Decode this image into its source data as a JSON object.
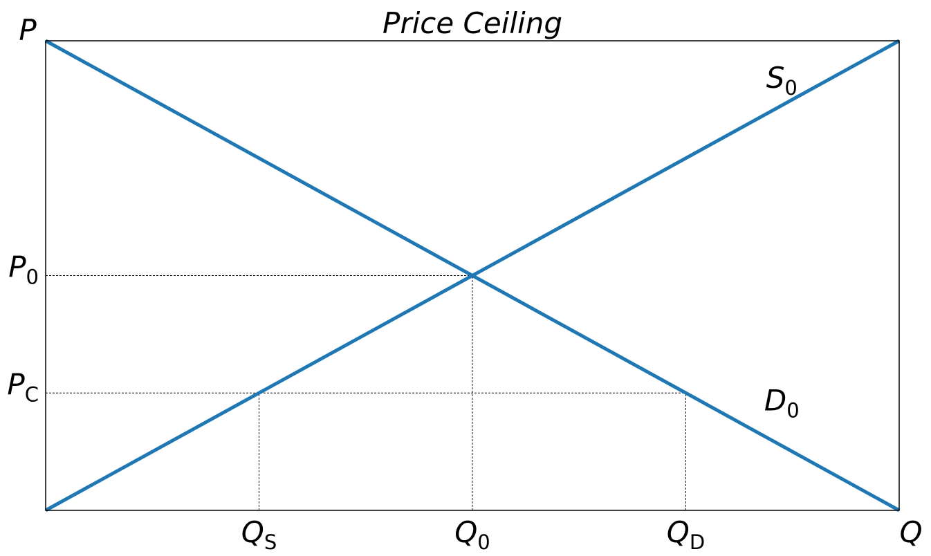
{
  "chart_data": {
    "type": "line",
    "title": "Price Ceiling",
    "xlabel": "Q",
    "ylabel": "P",
    "xlim": [
      0,
      8
    ],
    "ylim": [
      0,
      8
    ],
    "grid": false,
    "colors": {
      "curve": "#1f77b4",
      "guide": "#000000"
    },
    "series": [
      {
        "id": "supply",
        "label_base": "S",
        "label_sub": "0",
        "label_at": [
          6.9,
          7.2
        ],
        "x": [
          0,
          8
        ],
        "y": [
          0,
          8
        ]
      },
      {
        "id": "demand",
        "label_base": "D",
        "label_sub": "0",
        "label_at": [
          6.9,
          1.7
        ],
        "x": [
          0,
          8
        ],
        "y": [
          8,
          0
        ]
      }
    ],
    "y_ticks": [
      {
        "value": 4,
        "base": "P",
        "sub": "0"
      },
      {
        "value": 2,
        "base": "P",
        "sub": "C"
      }
    ],
    "x_ticks": [
      {
        "value": 2,
        "base": "Q",
        "sub": "S"
      },
      {
        "value": 4,
        "base": "Q",
        "sub": "0"
      },
      {
        "value": 6,
        "base": "Q",
        "sub": "D"
      }
    ],
    "guides": [
      {
        "from": [
          0,
          4
        ],
        "to": [
          4,
          4
        ]
      },
      {
        "from": [
          4,
          0
        ],
        "to": [
          4,
          4
        ]
      },
      {
        "from": [
          0,
          2
        ],
        "to": [
          6,
          2
        ]
      },
      {
        "from": [
          2,
          0
        ],
        "to": [
          2,
          2
        ]
      },
      {
        "from": [
          6,
          0
        ],
        "to": [
          6,
          2
        ]
      }
    ]
  }
}
